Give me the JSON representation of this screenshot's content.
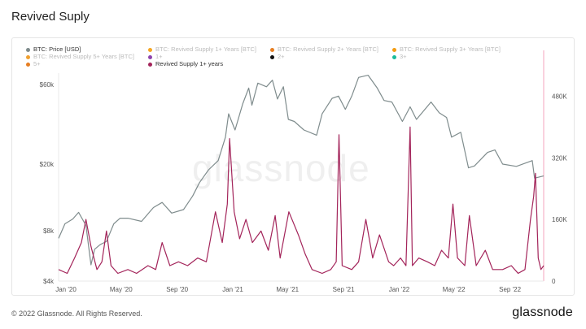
{
  "page": {
    "title": "Revived Suply",
    "copyright": "© 2022 Glassnode. All Rights Reserved.",
    "logo": "glassnode",
    "watermark": "glassnode"
  },
  "legend": [
    {
      "label": "BTC: Price [USD]",
      "color": "#7f8c8d",
      "active": true
    },
    {
      "label": "BTC: Revived Supply 1+ Years [BTC]",
      "color": "#f5a623",
      "active": false
    },
    {
      "label": "BTC: Revived Supply 2+ Years [BTC]",
      "color": "#e67e22",
      "active": false
    },
    {
      "label": "BTC: Revived Supply 3+ Years [BTC]",
      "color": "#f39c12",
      "active": false
    },
    {
      "label": "BTC: Revived Supply 5+ Years [BTC]",
      "color": "#f0a030",
      "active": false
    },
    {
      "label": "1+",
      "color": "#8e44ad",
      "active": false
    },
    {
      "label": "2+",
      "color": "#111111",
      "active": false
    },
    {
      "label": "3+",
      "color": "#1abc9c",
      "active": false
    },
    {
      "label": "5+",
      "color": "#e67e22",
      "active": false
    },
    {
      "label": "Revived Supply 1+ years",
      "color": "#a3245a",
      "active": true
    }
  ],
  "chart_data": {
    "type": "line",
    "x_tick_labels": [
      "Jan '20",
      "May '20",
      "Sep '20",
      "Jan '21",
      "May '21",
      "Sep '21",
      "Jan '22",
      "May '22",
      "Sep '22"
    ],
    "x_range": [
      "2020-01-01",
      "2022-11-30"
    ],
    "y_left": {
      "scale": "log",
      "range": [
        4000,
        70000
      ],
      "ticks": [
        4000,
        8000,
        20000,
        60000
      ],
      "tick_labels": [
        "$4k",
        "$8k",
        "$20k",
        "$60k"
      ]
    },
    "y_right": {
      "scale": "linear",
      "range": [
        0,
        540000
      ],
      "ticks": [
        0,
        160000,
        320000,
        480000
      ],
      "tick_labels": [
        "0",
        "160K",
        "320K",
        "480K"
      ]
    },
    "grid": false,
    "legend_position": "top",
    "series": [
      {
        "name": "BTC: Price [USD]",
        "axis": "left",
        "color": "#7f8c8d",
        "points": [
          [
            "2020-01-01",
            7200
          ],
          [
            "2020-01-15",
            8800
          ],
          [
            "2020-02-01",
            9400
          ],
          [
            "2020-02-14",
            10300
          ],
          [
            "2020-03-01",
            8600
          ],
          [
            "2020-03-12",
            5000
          ],
          [
            "2020-03-20",
            6200
          ],
          [
            "2020-04-01",
            6600
          ],
          [
            "2020-04-15",
            6900
          ],
          [
            "2020-05-01",
            8800
          ],
          [
            "2020-05-15",
            9500
          ],
          [
            "2020-06-01",
            9500
          ],
          [
            "2020-07-01",
            9100
          ],
          [
            "2020-07-27",
            11000
          ],
          [
            "2020-08-15",
            11800
          ],
          [
            "2020-09-05",
            10200
          ],
          [
            "2020-10-01",
            10700
          ],
          [
            "2020-10-21",
            12900
          ],
          [
            "2020-11-05",
            15500
          ],
          [
            "2020-11-25",
            18500
          ],
          [
            "2020-12-16",
            21000
          ],
          [
            "2021-01-01",
            29000
          ],
          [
            "2021-01-08",
            40000
          ],
          [
            "2021-01-22",
            32000
          ],
          [
            "2021-02-08",
            46000
          ],
          [
            "2021-02-21",
            57000
          ],
          [
            "2021-02-28",
            45000
          ],
          [
            "2021-03-13",
            61000
          ],
          [
            "2021-04-01",
            58000
          ],
          [
            "2021-04-14",
            63500
          ],
          [
            "2021-04-25",
            49000
          ],
          [
            "2021-05-08",
            58000
          ],
          [
            "2021-05-19",
            37000
          ],
          [
            "2021-06-01",
            36000
          ],
          [
            "2021-06-22",
            32000
          ],
          [
            "2021-07-20",
            29800
          ],
          [
            "2021-08-01",
            40000
          ],
          [
            "2021-08-23",
            49500
          ],
          [
            "2021-09-06",
            51000
          ],
          [
            "2021-09-21",
            42500
          ],
          [
            "2021-10-05",
            51000
          ],
          [
            "2021-10-20",
            66000
          ],
          [
            "2021-11-10",
            68000
          ],
          [
            "2021-11-30",
            57000
          ],
          [
            "2021-12-15",
            48000
          ],
          [
            "2022-01-01",
            47000
          ],
          [
            "2022-01-24",
            36000
          ],
          [
            "2022-02-10",
            44000
          ],
          [
            "2022-02-24",
            37000
          ],
          [
            "2022-03-28",
            47000
          ],
          [
            "2022-04-15",
            40500
          ],
          [
            "2022-05-01",
            38000
          ],
          [
            "2022-05-12",
            29000
          ],
          [
            "2022-06-01",
            31000
          ],
          [
            "2022-06-18",
            19000
          ],
          [
            "2022-07-01",
            19500
          ],
          [
            "2022-07-30",
            23500
          ],
          [
            "2022-08-15",
            24300
          ],
          [
            "2022-09-01",
            20000
          ],
          [
            "2022-10-01",
            19400
          ],
          [
            "2022-11-05",
            21000
          ],
          [
            "2022-11-10",
            16500
          ],
          [
            "2022-11-30",
            17000
          ]
        ]
      },
      {
        "name": "Revived Supply 1+ years",
        "axis": "right",
        "color": "#a3245a",
        "points": [
          [
            "2020-01-01",
            30000
          ],
          [
            "2020-01-20",
            20000
          ],
          [
            "2020-02-05",
            60000
          ],
          [
            "2020-02-20",
            100000
          ],
          [
            "2020-03-01",
            160000
          ],
          [
            "2020-03-12",
            90000
          ],
          [
            "2020-03-25",
            30000
          ],
          [
            "2020-04-05",
            50000
          ],
          [
            "2020-04-15",
            130000
          ],
          [
            "2020-04-25",
            40000
          ],
          [
            "2020-05-10",
            20000
          ],
          [
            "2020-06-01",
            30000
          ],
          [
            "2020-06-20",
            20000
          ],
          [
            "2020-07-15",
            40000
          ],
          [
            "2020-08-01",
            30000
          ],
          [
            "2020-08-15",
            100000
          ],
          [
            "2020-09-01",
            40000
          ],
          [
            "2020-09-20",
            50000
          ],
          [
            "2020-10-10",
            40000
          ],
          [
            "2020-11-01",
            60000
          ],
          [
            "2020-11-20",
            50000
          ],
          [
            "2020-12-10",
            180000
          ],
          [
            "2020-12-25",
            100000
          ],
          [
            "2021-01-05",
            200000
          ],
          [
            "2021-01-10",
            370000
          ],
          [
            "2021-01-20",
            180000
          ],
          [
            "2021-02-01",
            110000
          ],
          [
            "2021-02-15",
            160000
          ],
          [
            "2021-03-01",
            100000
          ],
          [
            "2021-03-20",
            130000
          ],
          [
            "2021-04-05",
            80000
          ],
          [
            "2021-04-20",
            170000
          ],
          [
            "2021-05-01",
            60000
          ],
          [
            "2021-05-20",
            180000
          ],
          [
            "2021-06-10",
            120000
          ],
          [
            "2021-06-25",
            70000
          ],
          [
            "2021-07-10",
            30000
          ],
          [
            "2021-08-01",
            20000
          ],
          [
            "2021-08-20",
            30000
          ],
          [
            "2021-09-01",
            50000
          ],
          [
            "2021-09-07",
            380000
          ],
          [
            "2021-09-14",
            40000
          ],
          [
            "2021-10-05",
            30000
          ],
          [
            "2021-10-20",
            50000
          ],
          [
            "2021-11-05",
            160000
          ],
          [
            "2021-11-20",
            60000
          ],
          [
            "2021-12-05",
            120000
          ],
          [
            "2021-12-25",
            50000
          ],
          [
            "2022-01-05",
            40000
          ],
          [
            "2022-01-20",
            60000
          ],
          [
            "2022-02-01",
            40000
          ],
          [
            "2022-02-10",
            400000
          ],
          [
            "2022-02-15",
            40000
          ],
          [
            "2022-03-01",
            60000
          ],
          [
            "2022-03-20",
            50000
          ],
          [
            "2022-04-05",
            40000
          ],
          [
            "2022-04-20",
            80000
          ],
          [
            "2022-05-05",
            60000
          ],
          [
            "2022-05-15",
            200000
          ],
          [
            "2022-05-25",
            60000
          ],
          [
            "2022-06-10",
            40000
          ],
          [
            "2022-06-20",
            170000
          ],
          [
            "2022-07-05",
            40000
          ],
          [
            "2022-07-25",
            80000
          ],
          [
            "2022-08-10",
            30000
          ],
          [
            "2022-09-01",
            30000
          ],
          [
            "2022-09-20",
            40000
          ],
          [
            "2022-10-05",
            20000
          ],
          [
            "2022-10-20",
            30000
          ],
          [
            "2022-11-01",
            160000
          ],
          [
            "2022-11-08",
            220000
          ],
          [
            "2022-11-12",
            280000
          ],
          [
            "2022-11-18",
            60000
          ],
          [
            "2022-11-24",
            30000
          ],
          [
            "2022-11-30",
            40000
          ]
        ]
      }
    ]
  }
}
